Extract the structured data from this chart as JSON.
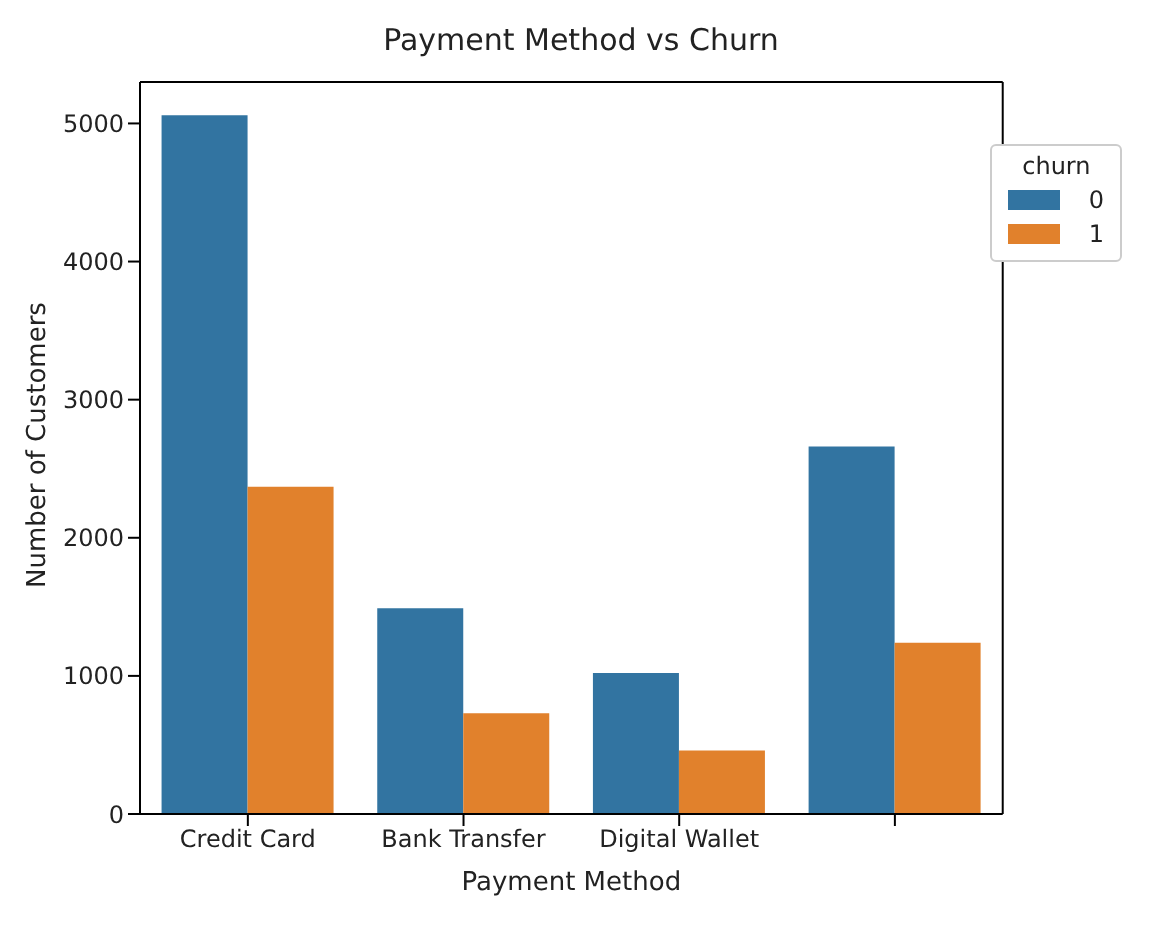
{
  "chart_data": {
    "type": "bar",
    "title": "Payment Method vs Churn",
    "xlabel": "Payment Method",
    "ylabel": "Number of Customers",
    "legend_title": "churn",
    "categories": [
      "Credit Card",
      "Bank Transfer",
      "Digital Wallet",
      null
    ],
    "series": [
      {
        "name": "0",
        "color": "#3274a1",
        "values": [
          5060,
          1490,
          1020,
          2660
        ]
      },
      {
        "name": "1",
        "color": "#e1812c",
        "values": [
          2370,
          730,
          460,
          1240
        ]
      }
    ],
    "ylim": [
      0,
      5300
    ],
    "yticks": [
      0,
      1000,
      2000,
      3000,
      4000,
      5000
    ],
    "grid": false,
    "legend": "top right"
  }
}
